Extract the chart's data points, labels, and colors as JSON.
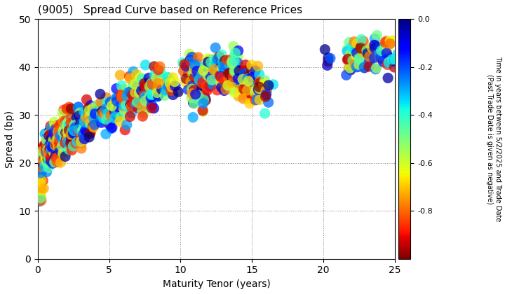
{
  "title": "(9005)   Spread Curve based on Reference Prices",
  "xlabel": "Maturity Tenor (years)",
  "ylabel": "Spread (bp)",
  "xlim": [
    0,
    25
  ],
  "ylim": [
    0,
    50
  ],
  "xticks": [
    0,
    5,
    10,
    15,
    20,
    25
  ],
  "yticks": [
    0,
    10,
    20,
    30,
    40,
    50
  ],
  "colorbar_label": "Time in years between 5/2/2025 and Trade Date\n(Past Trade Date is given as negative)",
  "colorbar_min": -1.0,
  "colorbar_max": 0.0,
  "colorbar_ticks": [
    0.0,
    -0.2,
    -0.4,
    -0.6,
    -0.8
  ],
  "cmap": "jet_r",
  "seed": 42,
  "figsize": [
    7.2,
    4.2
  ],
  "dpi": 100,
  "clusters": [
    {
      "x_center": 0.15,
      "y_center": 13,
      "x_std": 0.06,
      "y_std": 0.5,
      "n": 8
    },
    {
      "x_center": 0.25,
      "y_center": 17,
      "x_std": 0.06,
      "y_std": 1.5,
      "n": 15
    },
    {
      "x_center": 0.35,
      "y_center": 20,
      "x_std": 0.07,
      "y_std": 2,
      "n": 20
    },
    {
      "x_center": 0.5,
      "y_center": 21,
      "x_std": 0.07,
      "y_std": 2,
      "n": 20
    },
    {
      "x_center": 0.65,
      "y_center": 22,
      "x_std": 0.07,
      "y_std": 2,
      "n": 20
    },
    {
      "x_center": 0.8,
      "y_center": 23,
      "x_std": 0.07,
      "y_std": 2,
      "n": 20
    },
    {
      "x_center": 1.0,
      "y_center": 23.5,
      "x_std": 0.08,
      "y_std": 2,
      "n": 20
    },
    {
      "x_center": 1.2,
      "y_center": 24,
      "x_std": 0.08,
      "y_std": 2,
      "n": 20
    },
    {
      "x_center": 1.4,
      "y_center": 24.5,
      "x_std": 0.08,
      "y_std": 2,
      "n": 20
    },
    {
      "x_center": 1.6,
      "y_center": 25,
      "x_std": 0.08,
      "y_std": 2,
      "n": 20
    },
    {
      "x_center": 1.8,
      "y_center": 25.5,
      "x_std": 0.08,
      "y_std": 2,
      "n": 20
    },
    {
      "x_center": 2.0,
      "y_center": 26,
      "x_std": 0.09,
      "y_std": 2,
      "n": 20
    },
    {
      "x_center": 2.2,
      "y_center": 26.5,
      "x_std": 0.09,
      "y_std": 2,
      "n": 18
    },
    {
      "x_center": 2.4,
      "y_center": 27,
      "x_std": 0.09,
      "y_std": 2,
      "n": 18
    },
    {
      "x_center": 2.7,
      "y_center": 27.5,
      "x_std": 0.09,
      "y_std": 2,
      "n": 18
    },
    {
      "x_center": 3.0,
      "y_center": 28,
      "x_std": 0.1,
      "y_std": 2,
      "n": 18
    },
    {
      "x_center": 3.3,
      "y_center": 28.5,
      "x_std": 0.1,
      "y_std": 2,
      "n": 18
    },
    {
      "x_center": 3.6,
      "y_center": 29,
      "x_std": 0.1,
      "y_std": 2,
      "n": 18
    },
    {
      "x_center": 4.0,
      "y_center": 29.5,
      "x_std": 0.12,
      "y_std": 2,
      "n": 18
    },
    {
      "x_center": 4.5,
      "y_center": 30,
      "x_std": 0.12,
      "y_std": 2,
      "n": 18
    },
    {
      "x_center": 5.0,
      "y_center": 30.5,
      "x_std": 0.15,
      "y_std": 2,
      "n": 20
    },
    {
      "x_center": 5.5,
      "y_center": 31.5,
      "x_std": 0.15,
      "y_std": 2,
      "n": 18
    },
    {
      "x_center": 6.0,
      "y_center": 32.5,
      "x_std": 0.15,
      "y_std": 2.5,
      "n": 18
    },
    {
      "x_center": 6.5,
      "y_center": 33.5,
      "x_std": 0.15,
      "y_std": 2.5,
      "n": 18
    },
    {
      "x_center": 7.0,
      "y_center": 34.5,
      "x_std": 0.15,
      "y_std": 2.5,
      "n": 18
    },
    {
      "x_center": 7.5,
      "y_center": 35.5,
      "x_std": 0.15,
      "y_std": 2,
      "n": 18
    },
    {
      "x_center": 8.0,
      "y_center": 36,
      "x_std": 0.15,
      "y_std": 2,
      "n": 18
    },
    {
      "x_center": 8.5,
      "y_center": 36.5,
      "x_std": 0.15,
      "y_std": 2,
      "n": 15
    },
    {
      "x_center": 9.0,
      "y_center": 36,
      "x_std": 0.2,
      "y_std": 1.5,
      "n": 10
    },
    {
      "x_center": 9.5,
      "y_center": 36,
      "x_std": 0.2,
      "y_std": 1.5,
      "n": 8
    },
    {
      "x_center": 10.5,
      "y_center": 39,
      "x_std": 0.2,
      "y_std": 2,
      "n": 20
    },
    {
      "x_center": 11.0,
      "y_center": 38,
      "x_std": 0.25,
      "y_std": 3.5,
      "n": 25
    },
    {
      "x_center": 11.5,
      "y_center": 35,
      "x_std": 0.25,
      "y_std": 3.5,
      "n": 20
    },
    {
      "x_center": 12.0,
      "y_center": 39,
      "x_std": 0.2,
      "y_std": 2,
      "n": 20
    },
    {
      "x_center": 12.5,
      "y_center": 40,
      "x_std": 0.2,
      "y_std": 1.5,
      "n": 20
    },
    {
      "x_center": 13.0,
      "y_center": 39.5,
      "x_std": 0.2,
      "y_std": 2,
      "n": 20
    },
    {
      "x_center": 13.5,
      "y_center": 39,
      "x_std": 0.2,
      "y_std": 2,
      "n": 20
    },
    {
      "x_center": 14.0,
      "y_center": 38.5,
      "x_std": 0.2,
      "y_std": 2.5,
      "n": 20
    },
    {
      "x_center": 14.5,
      "y_center": 37.5,
      "x_std": 0.2,
      "y_std": 2.5,
      "n": 18
    },
    {
      "x_center": 15.0,
      "y_center": 37,
      "x_std": 0.2,
      "y_std": 2.5,
      "n": 18
    },
    {
      "x_center": 15.5,
      "y_center": 36,
      "x_std": 0.2,
      "y_std": 2,
      "n": 15
    },
    {
      "x_center": 16.0,
      "y_center": 35,
      "x_std": 0.2,
      "y_std": 2,
      "n": 12
    },
    {
      "x_center": 20.3,
      "y_center": 42,
      "x_std": 0.12,
      "y_std": 1,
      "n": 5
    },
    {
      "x_center": 21.8,
      "y_center": 42,
      "x_std": 0.2,
      "y_std": 2,
      "n": 12
    },
    {
      "x_center": 22.3,
      "y_center": 42.5,
      "x_std": 0.2,
      "y_std": 2,
      "n": 12
    },
    {
      "x_center": 22.8,
      "y_center": 43,
      "x_std": 0.2,
      "y_std": 2,
      "n": 12
    },
    {
      "x_center": 23.3,
      "y_center": 42,
      "x_std": 0.2,
      "y_std": 2,
      "n": 12
    },
    {
      "x_center": 23.8,
      "y_center": 43,
      "x_std": 0.2,
      "y_std": 2,
      "n": 12
    },
    {
      "x_center": 24.3,
      "y_center": 42.5,
      "x_std": 0.2,
      "y_std": 2,
      "n": 12
    },
    {
      "x_center": 24.8,
      "y_center": 43,
      "x_std": 0.2,
      "y_std": 2,
      "n": 10
    }
  ]
}
